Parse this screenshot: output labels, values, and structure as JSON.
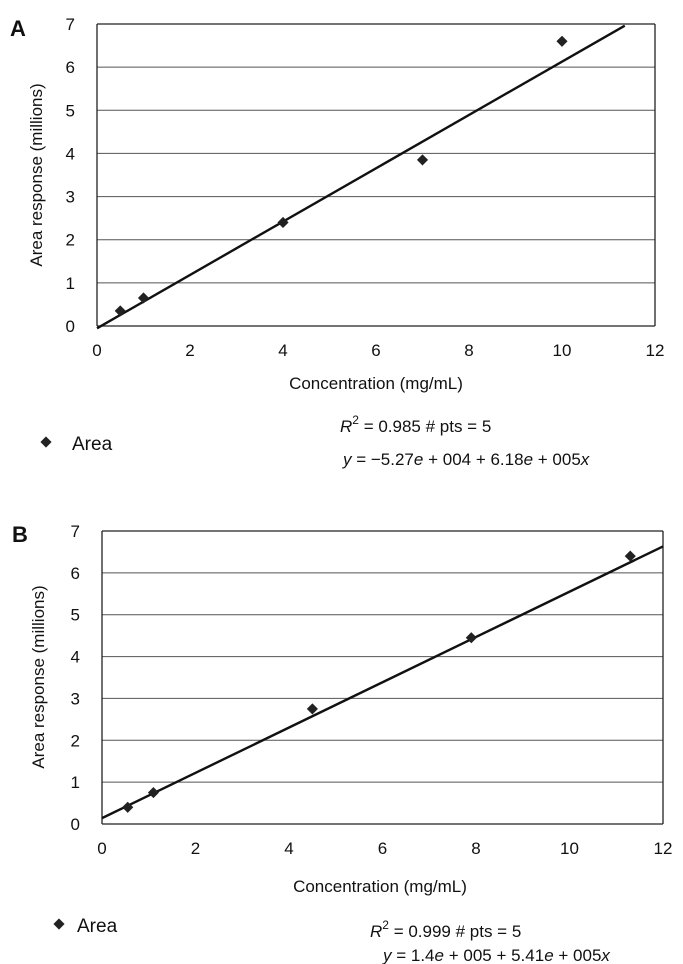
{
  "chart_data": [
    {
      "panel": "A",
      "type": "scatter",
      "xlabel": "Concentration (mg/mL)",
      "ylabel": "Area response (millions)",
      "xlim": [
        0,
        12
      ],
      "ylim": [
        0,
        7
      ],
      "xticks": [
        "0",
        "2",
        "4",
        "6",
        "8",
        "10",
        "12"
      ],
      "yticks": [
        "0",
        "1",
        "2",
        "3",
        "4",
        "5",
        "6",
        "7"
      ],
      "grid": true,
      "legend_position": "bottom-left",
      "series": [
        {
          "name": "Area",
          "x": [
            0.5,
            1.0,
            4.0,
            7.0,
            10.0
          ],
          "y": [
            0.35,
            0.65,
            2.4,
            3.85,
            6.6
          ]
        }
      ],
      "fit_line": {
        "intercept": -0.0527,
        "slope": 0.618
      },
      "stats": {
        "r2_label": "R",
        "r2_sup": "2",
        "r2_rest": " = 0.985  # pts = 5",
        "eq_y": "y",
        "eq_mid": " =  −5.27",
        "eq_e1": "e",
        "eq_mid2": " + 004 + 6.18",
        "eq_e2": "e",
        "eq_mid3": " + 005",
        "eq_x": "x"
      }
    },
    {
      "panel": "B",
      "type": "scatter",
      "xlabel": "Concentration (mg/mL)",
      "ylabel": "Area response (millions)",
      "xlim": [
        0,
        12
      ],
      "ylim": [
        0,
        7
      ],
      "xticks": [
        "0",
        "2",
        "4",
        "6",
        "8",
        "10",
        "12"
      ],
      "yticks": [
        "0",
        "1",
        "2",
        "3",
        "4",
        "5",
        "6",
        "7"
      ],
      "grid": true,
      "legend_position": "bottom-left",
      "series": [
        {
          "name": "Area",
          "x": [
            0.55,
            1.1,
            4.5,
            7.9,
            11.3
          ],
          "y": [
            0.4,
            0.75,
            2.75,
            4.45,
            6.4
          ]
        }
      ],
      "fit_line": {
        "intercept": 0.14,
        "slope": 0.541
      },
      "stats": {
        "r2_label": "R",
        "r2_sup": "2",
        "r2_rest": " = 0.999  # pts = 5",
        "eq_y": "y",
        "eq_mid": " = 1.4",
        "eq_e1": "e",
        "eq_mid2": " + 005 + 5.41",
        "eq_e2": "e",
        "eq_mid3": " + 005",
        "eq_x": "x"
      }
    }
  ]
}
